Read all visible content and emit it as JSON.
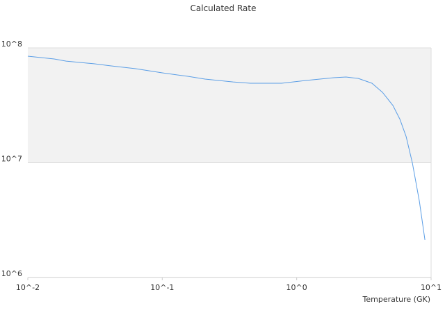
{
  "chart_data": {
    "type": "line",
    "title": "Calculated Rate",
    "x_label": "Temperature (GK)",
    "x_scale": "log",
    "y_scale": "log",
    "grid": true,
    "band_color": "#f2f2f2",
    "xlim": [
      0.01,
      10
    ],
    "ylim": [
      1000000,
      100000000
    ],
    "xticks": [
      {
        "value": 0.01,
        "label": "10^-2"
      },
      {
        "value": 0.1,
        "label": "10^-1"
      },
      {
        "value": 1,
        "label": "10^0"
      },
      {
        "value": 10,
        "label": "10^1"
      }
    ],
    "yticks": [
      {
        "value": 1000000,
        "label": "10^6"
      },
      {
        "value": 10000000,
        "label": "10^7"
      },
      {
        "value": 100000000,
        "label": "10^8"
      }
    ],
    "x": [
      0.01,
      0.0157,
      0.0193,
      0.031,
      0.0417,
      0.0634,
      0.1,
      0.155,
      0.208,
      0.336,
      0.452,
      0.773,
      1.17,
      1.89,
      2.33,
      2.87,
      3.63,
      4.35,
      5.2,
      5.86,
      6.52,
      7.26,
      8.18,
      9.0
    ],
    "series": [
      {
        "color": "#5b9ee6",
        "values": [
          84600000,
          80000000,
          76700000,
          72700000,
          69600000,
          65900000,
          60600000,
          56500000,
          53500000,
          50500000,
          49200000,
          49200000,
          52000000,
          55000000,
          55700000,
          54200000,
          49200000,
          41000000,
          31500000,
          23900000,
          16900000,
          9930000,
          4620000,
          2120000
        ]
      }
    ]
  }
}
